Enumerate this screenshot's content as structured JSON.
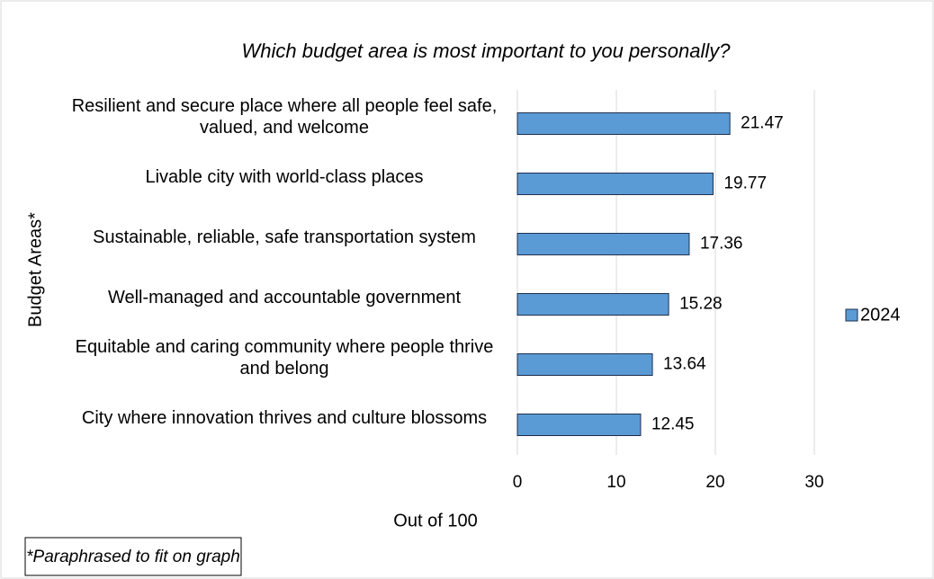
{
  "chart_data": {
    "type": "bar",
    "orientation": "horizontal",
    "title": "Which budget area is most important to you personally?",
    "categories": [
      "Resilient and secure place where all people feel safe, valued, and welcome",
      "Livable city with world-class places",
      "Sustainable, reliable, safe transportation system",
      "Well-managed and accountable government",
      "Equitable and caring community where people thrive and belong",
      "City where innovation thrives and culture blossoms"
    ],
    "series": [
      {
        "name": "2024",
        "color": "#5b9bd5",
        "values": [
          21.47,
          19.77,
          17.36,
          15.28,
          13.64,
          12.45
        ]
      }
    ],
    "xlim": [
      0,
      30
    ],
    "xticks": [
      0,
      10,
      20,
      30
    ],
    "x_label": "Out of 100",
    "y_label": "Budget Areas*",
    "grid": true,
    "legend_position": "right",
    "note": "*Paraphrased to fit on graph"
  }
}
